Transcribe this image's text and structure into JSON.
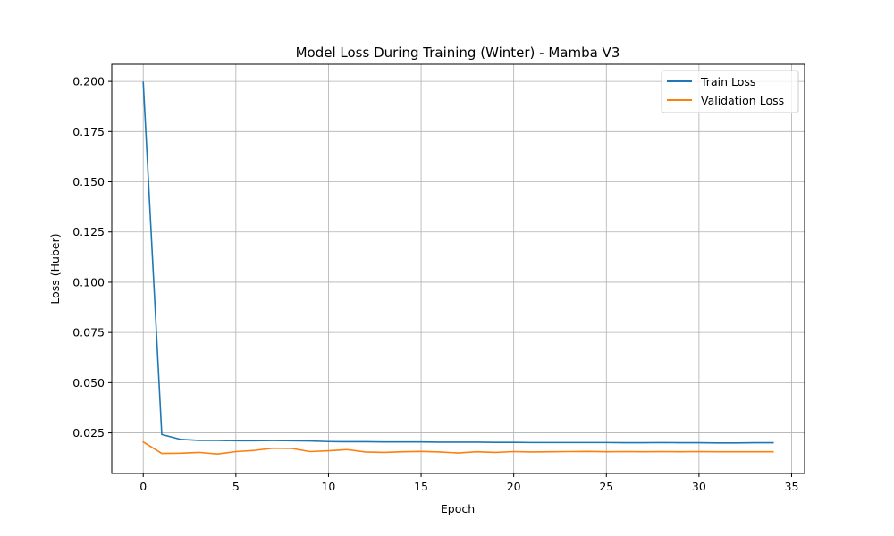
{
  "chart_data": {
    "type": "line",
    "title": "Model Loss During Training (Winter) - Mamba V3",
    "xlabel": "Epoch",
    "ylabel": "Loss (Huber)",
    "xlim": [
      -1.7,
      35.7
    ],
    "ylim": [
      0.0048,
      0.2085
    ],
    "xticks": [
      0,
      5,
      10,
      15,
      20,
      25,
      30,
      35
    ],
    "yticks": [
      0.025,
      0.05,
      0.075,
      0.1,
      0.125,
      0.15,
      0.175,
      0.2
    ],
    "ytick_labels": [
      "0.025",
      "0.050",
      "0.075",
      "0.100",
      "0.125",
      "0.150",
      "0.175",
      "0.200"
    ],
    "xtick_labels": [
      "0",
      "5",
      "10",
      "15",
      "20",
      "25",
      "30",
      "35"
    ],
    "grid": true,
    "legend_position": "top-right",
    "x": [
      0,
      1,
      2,
      3,
      4,
      5,
      6,
      7,
      8,
      9,
      10,
      11,
      12,
      13,
      14,
      15,
      16,
      17,
      18,
      19,
      20,
      21,
      22,
      23,
      24,
      25,
      26,
      27,
      28,
      29,
      30,
      31,
      32,
      33,
      34
    ],
    "series": [
      {
        "name": "Train Loss",
        "color": "#1f77b4",
        "values": [
          0.1995,
          0.0242,
          0.0218,
          0.0213,
          0.0213,
          0.0211,
          0.0211,
          0.0212,
          0.0211,
          0.021,
          0.0207,
          0.0206,
          0.0206,
          0.0205,
          0.0205,
          0.0205,
          0.0204,
          0.0204,
          0.0204,
          0.0203,
          0.0203,
          0.0202,
          0.0202,
          0.0202,
          0.0202,
          0.0202,
          0.0201,
          0.0201,
          0.0202,
          0.0201,
          0.0201,
          0.02,
          0.02,
          0.0201,
          0.0201
        ]
      },
      {
        "name": "Validation Loss",
        "color": "#ff7f0e",
        "values": [
          0.0205,
          0.0148,
          0.0149,
          0.0153,
          0.0145,
          0.0157,
          0.0163,
          0.0174,
          0.0173,
          0.0157,
          0.0161,
          0.0167,
          0.0155,
          0.0153,
          0.0156,
          0.0158,
          0.0155,
          0.015,
          0.0156,
          0.0153,
          0.0157,
          0.0155,
          0.0156,
          0.0157,
          0.0158,
          0.0156,
          0.0157,
          0.0156,
          0.0157,
          0.0156,
          0.0157,
          0.0156,
          0.0156,
          0.0156,
          0.0156
        ]
      }
    ]
  }
}
